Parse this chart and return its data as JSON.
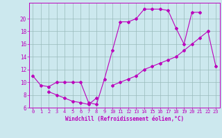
{
  "title": "",
  "xlabel": "Windchill (Refroidissement éolien,°C)",
  "background_color": "#cce8ee",
  "line_color": "#bb00bb",
  "grid_color": "#99bbbb",
  "xlim": [
    -0.5,
    23.5
  ],
  "ylim": [
    6,
    22.5
  ],
  "yticks": [
    6,
    8,
    10,
    12,
    14,
    16,
    18,
    20
  ],
  "xticks": [
    0,
    1,
    2,
    3,
    4,
    5,
    6,
    7,
    8,
    9,
    10,
    11,
    12,
    13,
    14,
    15,
    16,
    17,
    18,
    19,
    20,
    21,
    22,
    23
  ],
  "line1_x": [
    0,
    1,
    2,
    3,
    4,
    5,
    6,
    7,
    8,
    9,
    10,
    11,
    12,
    13,
    14,
    15,
    16,
    17,
    18,
    19,
    20,
    21
  ],
  "line1_y": [
    11,
    9.5,
    9.3,
    10.0,
    10.0,
    10.0,
    10.0,
    6.8,
    6.5,
    10.5,
    15.0,
    19.5,
    19.5,
    20.0,
    21.5,
    21.5,
    21.5,
    21.3,
    18.5,
    16.0,
    21.0,
    21.0
  ],
  "line2_x": [
    2,
    3,
    4,
    5,
    6,
    7,
    8
  ],
  "line2_y": [
    8.5,
    8.0,
    7.5,
    7.0,
    6.8,
    6.5,
    7.5
  ],
  "line3_x": [
    10,
    11,
    12,
    13,
    14,
    15,
    16,
    17,
    18,
    19,
    20,
    21,
    22,
    23
  ],
  "line3_y": [
    9.5,
    10.0,
    10.5,
    11.0,
    12.0,
    12.5,
    13.0,
    13.5,
    14.0,
    15.0,
    16.0,
    17.0,
    18.0,
    12.5
  ],
  "tick_fontsize": 5.0,
  "xlabel_fontsize": 5.5,
  "marker_size": 2.0
}
